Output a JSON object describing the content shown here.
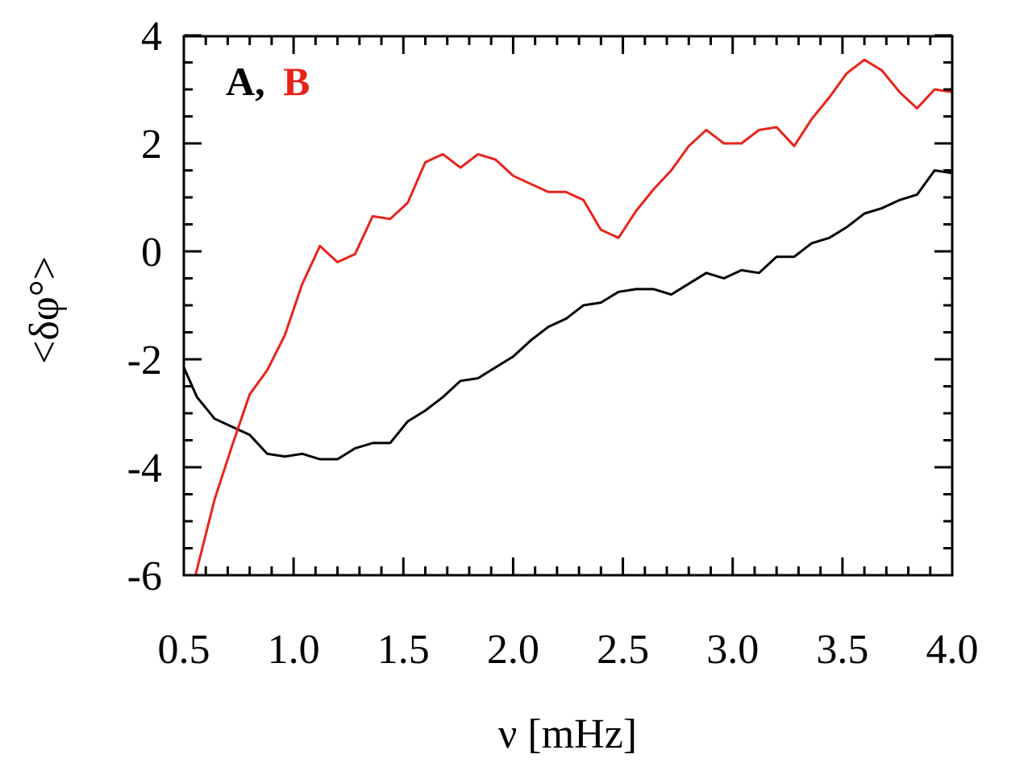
{
  "chart_data": {
    "type": "line",
    "xlabel": "ν [mHz]",
    "ylabel": "<δφ°>",
    "xlim": [
      0.5,
      4.0
    ],
    "ylim": [
      -6.05,
      4.0
    ],
    "xticks": [
      0.5,
      1.0,
      1.5,
      2.0,
      2.5,
      3.0,
      3.5,
      4.0
    ],
    "xtick_labels": [
      "0.5",
      "1.0",
      "1.5",
      "2.0",
      "2.5",
      "3.0",
      "3.5",
      "4.0"
    ],
    "yticks": [
      4,
      2,
      0,
      -2,
      -4,
      -6
    ],
    "ytick_labels": [
      "4",
      "2",
      "0",
      "-2",
      "-4",
      "-6"
    ],
    "grid": false,
    "legend": {
      "placement": "top-left",
      "prefix": "A,",
      "prefix_color": "#000000",
      "label": "B",
      "label_color": "#e8231a"
    },
    "series": [
      {
        "color": "#000000",
        "x": [
          0.5,
          0.56,
          0.64,
          0.72,
          0.8,
          0.88,
          0.96,
          1.04,
          1.12,
          1.2,
          1.28,
          1.36,
          1.44,
          1.52,
          1.6,
          1.68,
          1.76,
          1.84,
          1.92,
          2.0,
          2.08,
          2.16,
          2.24,
          2.32,
          2.4,
          2.48,
          2.56,
          2.64,
          2.72,
          2.8,
          2.88,
          2.96,
          3.04,
          3.12,
          3.2,
          3.28,
          3.36,
          3.44,
          3.52,
          3.6,
          3.68,
          3.76,
          3.84,
          3.92,
          4.0
        ],
        "y": [
          -2.15,
          -2.7,
          -3.1,
          -3.25,
          -3.4,
          -3.75,
          -3.8,
          -3.75,
          -3.85,
          -3.85,
          -3.65,
          -3.55,
          -3.55,
          -3.15,
          -2.95,
          -2.7,
          -2.4,
          -2.35,
          -2.15,
          -1.95,
          -1.65,
          -1.4,
          -1.25,
          -1.0,
          -0.95,
          -0.75,
          -0.7,
          -0.7,
          -0.8,
          -0.6,
          -0.4,
          -0.5,
          -0.35,
          -0.4,
          -0.1,
          -0.1,
          0.15,
          0.25,
          0.45,
          0.7,
          0.8,
          0.95,
          1.05,
          1.5,
          1.45
        ]
      },
      {
        "color": "#e8231a",
        "x": [
          0.55,
          0.64,
          0.72,
          0.8,
          0.88,
          0.96,
          1.04,
          1.12,
          1.2,
          1.28,
          1.36,
          1.44,
          1.52,
          1.6,
          1.68,
          1.76,
          1.84,
          1.92,
          2.0,
          2.08,
          2.16,
          2.24,
          2.32,
          2.4,
          2.48,
          2.56,
          2.64,
          2.72,
          2.8,
          2.88,
          2.96,
          3.04,
          3.12,
          3.2,
          3.28,
          3.36,
          3.44,
          3.52,
          3.6,
          3.68,
          3.76,
          3.84,
          3.92,
          4.0
        ],
        "y": [
          -6.05,
          -4.6,
          -3.6,
          -2.65,
          -2.2,
          -1.55,
          -0.6,
          0.1,
          -0.2,
          -0.05,
          0.65,
          0.6,
          0.9,
          1.65,
          1.8,
          1.55,
          1.8,
          1.7,
          1.4,
          1.25,
          1.1,
          1.1,
          0.95,
          0.4,
          0.25,
          0.75,
          1.15,
          1.5,
          1.95,
          2.25,
          2.0,
          2.0,
          2.25,
          2.3,
          1.95,
          2.45,
          2.85,
          3.3,
          3.55,
          3.35,
          2.95,
          2.65,
          3.0,
          2.95
        ]
      }
    ]
  }
}
